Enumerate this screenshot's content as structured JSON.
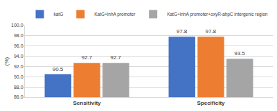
{
  "chart_data": {
    "type": "bar",
    "categories": [
      "Sensitivity",
      "Specificity"
    ],
    "series": [
      {
        "name": "katG",
        "color": "#4472c4",
        "values": [
          90.5,
          97.8
        ]
      },
      {
        "name": "KatG+inhA promoter",
        "color": "#ed7d31",
        "values": [
          92.7,
          97.8
        ]
      },
      {
        "name": "KatG+inhA promoter+oxyR-ahpC intergenic region",
        "color": "#a5a5a5",
        "values": [
          92.7,
          93.5
        ]
      }
    ],
    "y_label": "(%)",
    "ylim": [
      86,
      100
    ],
    "yticks": [
      {
        "value": 86,
        "label": "86.0"
      },
      {
        "value": 88,
        "label": "88.0"
      },
      {
        "value": 90,
        "label": "90.0"
      },
      {
        "value": 92,
        "label": "92.0"
      },
      {
        "value": 94,
        "label": "94.0"
      },
      {
        "value": 96,
        "label": "96.0"
      },
      {
        "value": 98,
        "label": "98.0"
      },
      {
        "value": 100,
        "label": "100.0"
      }
    ],
    "grid": true,
    "legend": "top",
    "data_labels": true
  }
}
